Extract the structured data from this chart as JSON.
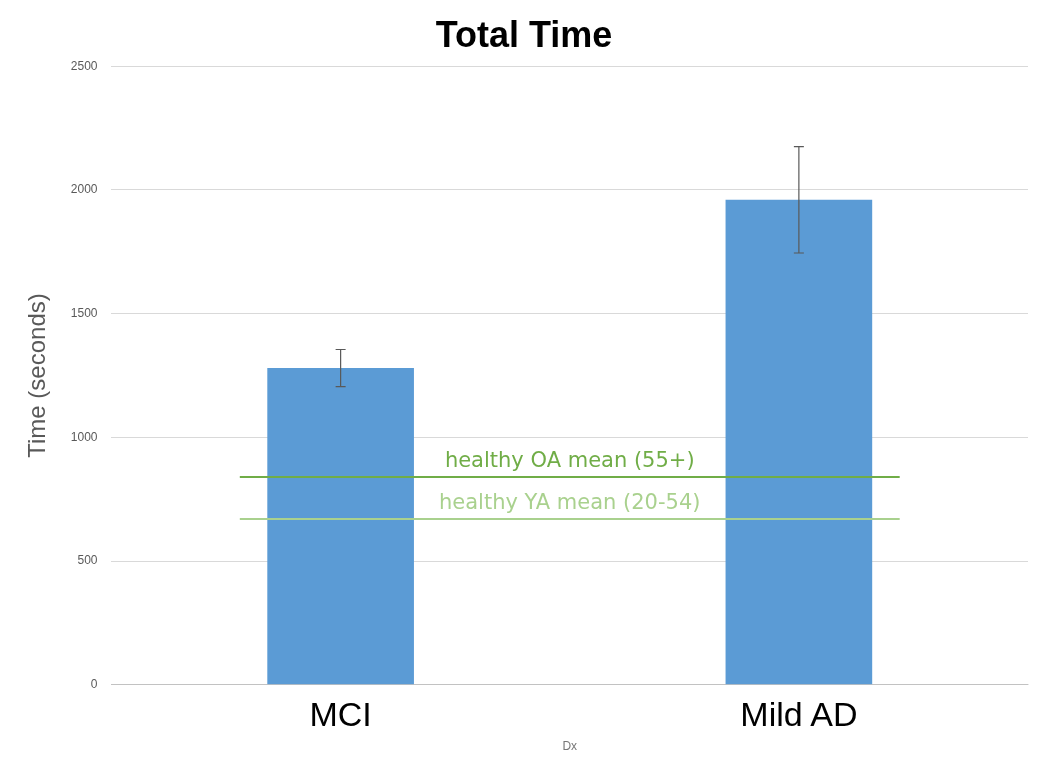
{
  "chart_data": {
    "type": "bar",
    "title": "Total Time",
    "xlabel": "Dx",
    "ylabel": "Time (seconds)",
    "categories": [
      "MCI",
      "Mild AD"
    ],
    "values": [
      1280,
      1960
    ],
    "errors": [
      75,
      215
    ],
    "color": "#5b9bd5",
    "ylim": [
      0,
      2500
    ],
    "yticks": [
      0,
      500,
      1000,
      1500,
      2000,
      2500
    ],
    "grid": "y",
    "ref_lines": [
      {
        "axis": "y",
        "value": 840,
        "label": "healthy OA mean (55+)",
        "color": "#70ad47"
      },
      {
        "axis": "y",
        "value": 670,
        "label": "healthy YA mean (20-54)",
        "color": "#a9d18e"
      }
    ]
  }
}
